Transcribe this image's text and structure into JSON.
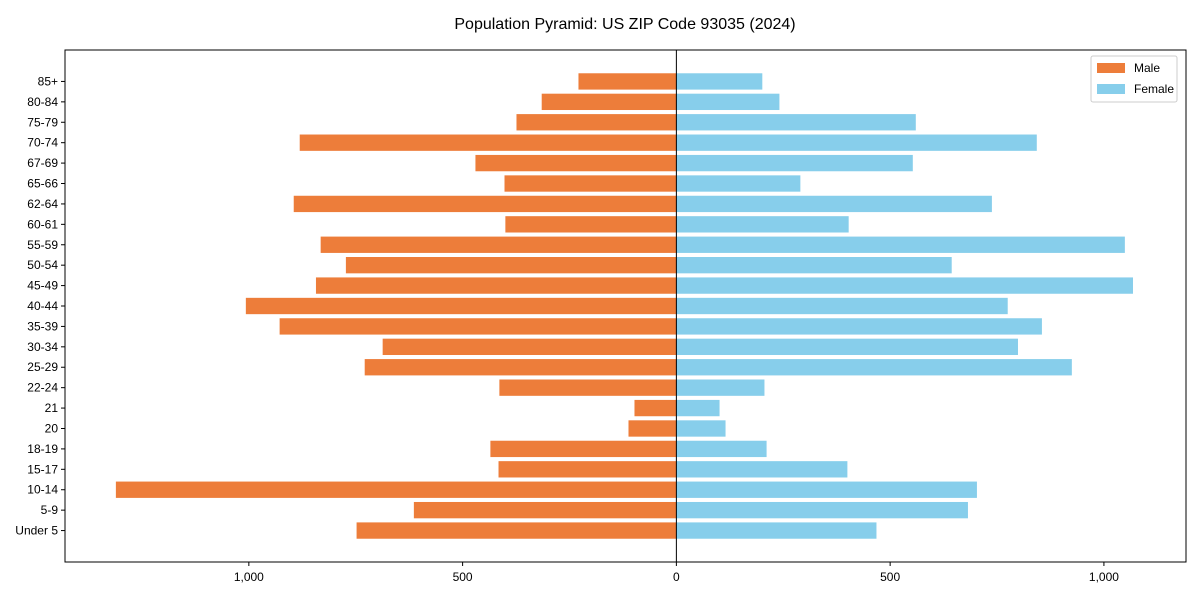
{
  "chart_data": {
    "type": "bar",
    "orientation": "horizontal",
    "title": "Population Pyramid: US ZIP Code 93035 (2024)",
    "xlabel": "",
    "ylabel": "",
    "xlim": [
      -1430,
      1192
    ],
    "xticks": [
      -1000,
      -500,
      0,
      500,
      1000
    ],
    "xtick_labels": [
      "1,000",
      "500",
      "0",
      "500",
      "1,000"
    ],
    "grid": false,
    "legend_position": "top-right",
    "categories": [
      "Under 5",
      "5-9",
      "10-14",
      "15-17",
      "18-19",
      "20",
      "21",
      "22-24",
      "25-29",
      "30-34",
      "35-39",
      "40-44",
      "45-49",
      "50-54",
      "55-59",
      "60-61",
      "62-64",
      "65-66",
      "67-69",
      "70-74",
      "75-79",
      "80-84",
      "85+"
    ],
    "series": [
      {
        "name": "Male",
        "color": "#ED7D3A",
        "side": "left",
        "values": [
          748,
          614,
          1311,
          416,
          435,
          112,
          98,
          414,
          729,
          687,
          928,
          1007,
          843,
          773,
          832,
          400,
          895,
          402,
          470,
          881,
          374,
          315,
          229
        ]
      },
      {
        "name": "Female",
        "color": "#87CEEB",
        "side": "right",
        "values": [
          468,
          682,
          703,
          400,
          211,
          115,
          101,
          206,
          925,
          799,
          855,
          775,
          1068,
          644,
          1049,
          403,
          738,
          290,
          553,
          843,
          560,
          241,
          201
        ]
      }
    ]
  }
}
